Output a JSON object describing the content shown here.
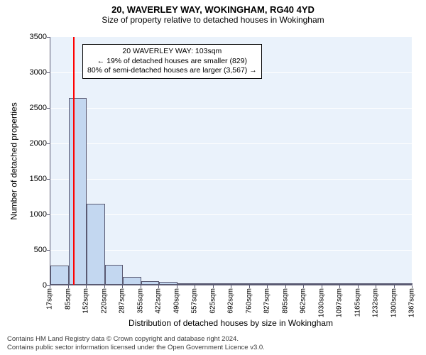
{
  "header": {
    "title": "20, WAVERLEY WAY, WOKINGHAM, RG40 4YD",
    "subtitle": "Size of property relative to detached houses in Wokingham",
    "title_fontsize": 13,
    "subtitle_fontsize": 12
  },
  "chart": {
    "type": "histogram",
    "background_color": "#eaf2fb",
    "grid_color": "#ffffff",
    "axis_color": "#5a5a72",
    "bar_fill": "#c3d7f0",
    "bar_border": "#5a5a72",
    "marker_color": "#ff0000",
    "ylim": [
      0,
      3500
    ],
    "ytick_step": 500,
    "yticks": [
      0,
      500,
      1000,
      1500,
      2000,
      2500,
      3000,
      3500
    ],
    "ylabel": "Number of detached properties",
    "xlabel": "Distribution of detached houses by size in Wokingham",
    "xticks": [
      "17sqm",
      "85sqm",
      "152sqm",
      "220sqm",
      "287sqm",
      "355sqm",
      "422sqm",
      "490sqm",
      "557sqm",
      "625sqm",
      "692sqm",
      "760sqm",
      "827sqm",
      "895sqm",
      "962sqm",
      "1030sqm",
      "1097sqm",
      "1165sqm",
      "1232sqm",
      "1300sqm",
      "1367sqm"
    ],
    "bars": [
      270,
      2630,
      1140,
      280,
      110,
      50,
      40,
      25,
      18,
      14,
      10,
      8,
      6,
      5,
      4,
      3,
      2,
      2,
      1,
      1
    ],
    "marker_bin_index": 1,
    "marker_position_in_bin": 0.27,
    "label_fontsize": 12,
    "tick_fontsize": 11,
    "xtick_fontsize": 10
  },
  "annotation": {
    "line1": "20 WAVERLEY WAY: 103sqm",
    "line2": "← 19% of detached houses are smaller (829)",
    "line3": "80% of semi-detached houses are larger (3,567) →",
    "border_color": "#000000",
    "bg_color": "#ffffff",
    "fontsize": 10.5
  },
  "footer": {
    "line1": "Contains HM Land Registry data © Crown copyright and database right 2024.",
    "line2": "Contains public sector information licensed under the Open Government Licence v3.0.",
    "fontsize": 9.5,
    "color": "#3a3a3a"
  }
}
